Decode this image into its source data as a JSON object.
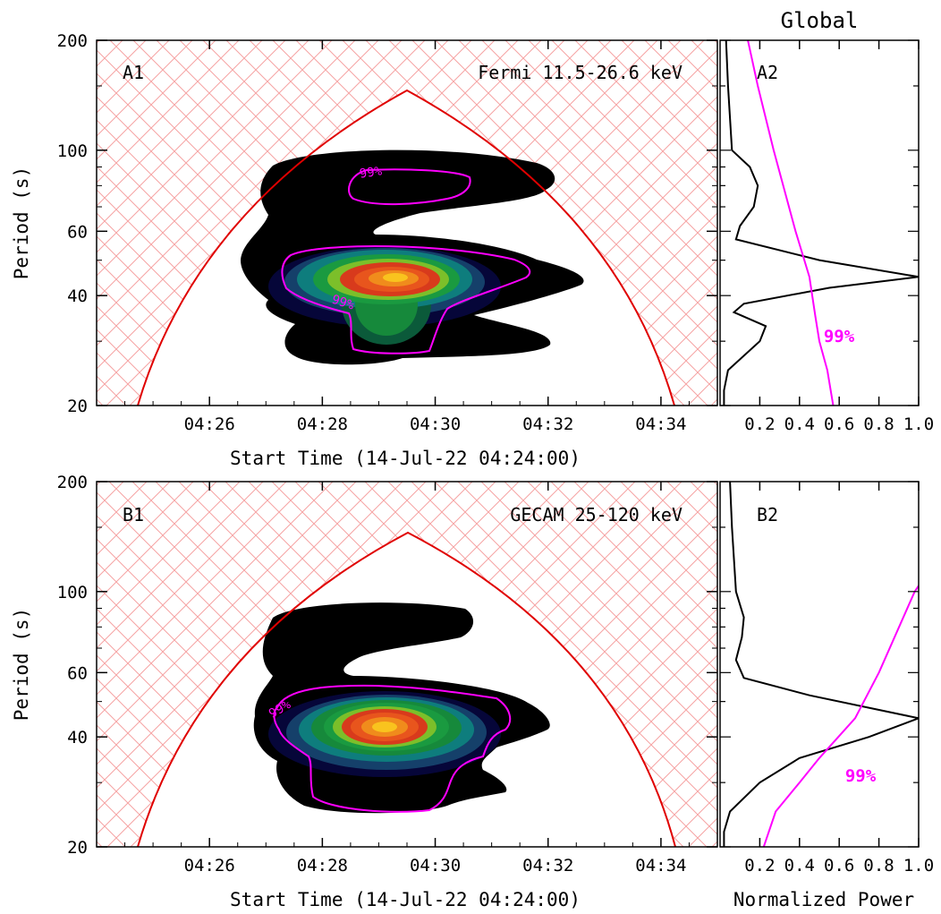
{
  "figure": {
    "global_title": "Global",
    "x_title": "Start Time (14-Jul-22 04:24:00)",
    "y_title": "Period (s)",
    "power_title": "Normalized Power",
    "significance_label": "99%"
  },
  "chart_data": [
    {
      "type": "heatmap",
      "panel": "A1",
      "instrument": "Fermi 11.5-26.6 keV",
      "x_ticks": [
        "04:26",
        "04:28",
        "04:30",
        "04:32",
        "04:34"
      ],
      "x_tick_minutes": [
        26,
        28,
        30,
        32,
        34
      ],
      "xlim_minutes": [
        24.0,
        35.0
      ],
      "y_scale": "log",
      "ylim": [
        20,
        200
      ],
      "y_ticks": [
        20,
        40,
        60,
        100,
        200
      ],
      "peak": {
        "time_minute": 29.4,
        "period": 45
      },
      "significance_contour": "99%",
      "cone_of_influence_apex": {
        "time_minute": 29.5,
        "period": 150
      }
    },
    {
      "type": "line",
      "panel": "A2",
      "title": "Global",
      "xlim": [
        0,
        1.0
      ],
      "x_ticks": [
        0.2,
        0.4,
        0.6,
        0.8,
        1.0
      ],
      "y_scale": "log",
      "ylim": [
        20,
        200
      ],
      "series": [
        {
          "period": [
            200,
            150,
            100,
            90,
            80,
            70,
            62,
            57,
            50,
            45,
            42,
            38,
            36,
            33,
            30,
            25,
            22,
            20
          ],
          "power": [
            0.03,
            0.04,
            0.06,
            0.15,
            0.19,
            0.17,
            0.1,
            0.08,
            0.5,
            1.0,
            0.55,
            0.12,
            0.07,
            0.23,
            0.2,
            0.04,
            0.02,
            0.02
          ]
        },
        {
          "name": "99%",
          "period": [
            200,
            150,
            100,
            60,
            45,
            35,
            30,
            25,
            20
          ],
          "power": [
            0.14,
            0.19,
            0.27,
            0.38,
            0.45,
            0.48,
            0.5,
            0.54,
            0.57
          ]
        }
      ]
    },
    {
      "type": "heatmap",
      "panel": "B1",
      "instrument": "GECAM 25-120 keV",
      "x_ticks": [
        "04:26",
        "04:28",
        "04:30",
        "04:32",
        "04:34"
      ],
      "x_tick_minutes": [
        26,
        28,
        30,
        32,
        34
      ],
      "xlim_minutes": [
        24.0,
        35.0
      ],
      "y_scale": "log",
      "ylim": [
        20,
        200
      ],
      "y_ticks": [
        20,
        40,
        60,
        100,
        200
      ],
      "peak": {
        "time_minute": 29.3,
        "period": 42
      },
      "significance_contour": "99%",
      "cone_of_influence_apex": {
        "time_minute": 29.7,
        "period": 150
      }
    },
    {
      "type": "line",
      "panel": "B2",
      "xlabel": "Normalized Power",
      "xlim": [
        0,
        1.0
      ],
      "x_ticks": [
        0.2,
        0.4,
        0.6,
        0.8,
        1.0
      ],
      "y_scale": "log",
      "ylim": [
        20,
        200
      ],
      "series": [
        {
          "period": [
            200,
            150,
            100,
            85,
            75,
            65,
            58,
            52,
            45,
            40,
            35,
            30,
            25,
            22,
            20
          ],
          "power": [
            0.05,
            0.06,
            0.08,
            0.12,
            0.11,
            0.08,
            0.12,
            0.45,
            1.0,
            0.75,
            0.4,
            0.2,
            0.05,
            0.02,
            0.02
          ]
        },
        {
          "name": "99%",
          "period": [
            200,
            150,
            100,
            60,
            45,
            35,
            30,
            25,
            20
          ],
          "power": [
            1.5,
            1.2,
            0.98,
            0.8,
            0.68,
            0.5,
            0.4,
            0.28,
            0.22
          ]
        }
      ]
    }
  ]
}
